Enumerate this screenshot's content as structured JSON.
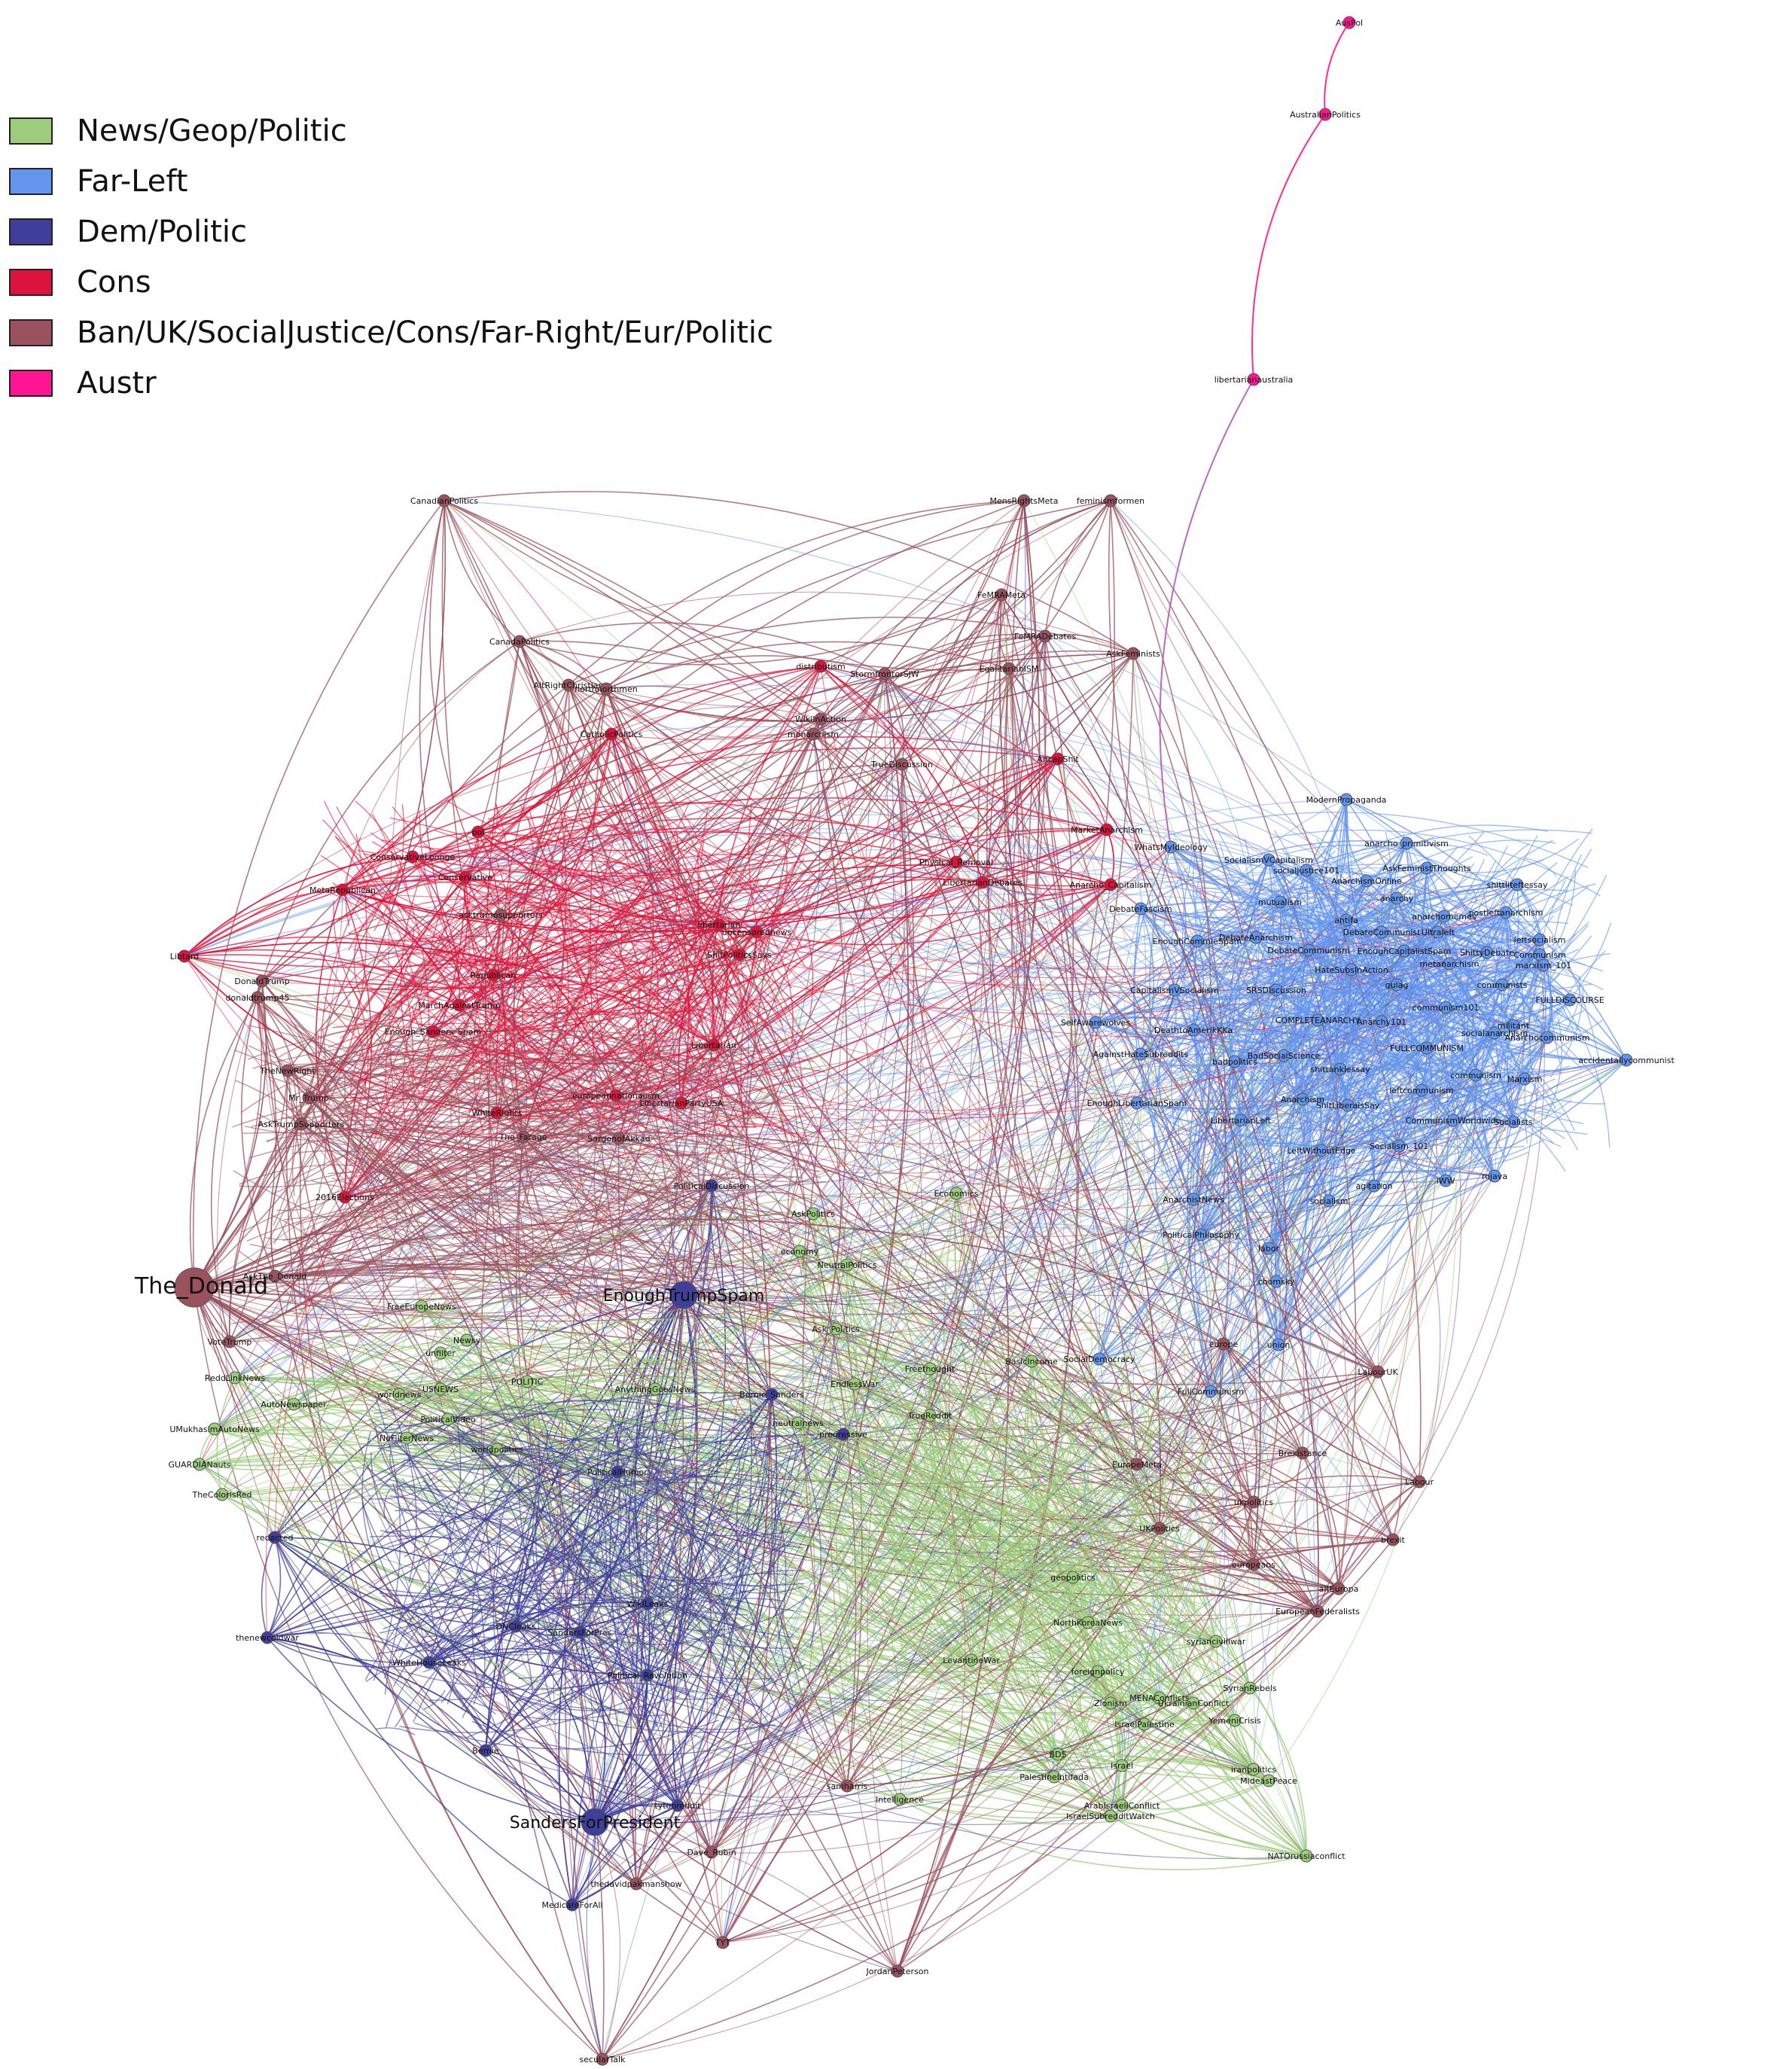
{
  "legend": [
    {
      "label": "News/Geop/Politic",
      "color": "#9ccc7c"
    },
    {
      "label": "Far-Left",
      "color": "#6495ed"
    },
    {
      "label": "Dem/Politic",
      "color": "#3f3f9a"
    },
    {
      "label": "Cons",
      "color": "#dc143c"
    },
    {
      "label": "Ban/UK/SocialJustice/Cons/Far-Right/Eur/Politic",
      "color": "#9a525f"
    },
    {
      "label": "Austr",
      "color": "#ff1493"
    }
  ],
  "nodes": [
    {
      "id": "The_Donald",
      "group": 4,
      "big": true
    },
    {
      "id": "SandersForPresident",
      "group": 2,
      "big": true
    },
    {
      "id": "EnoughTrumpSpam",
      "group": 2,
      "big": true
    },
    {
      "id": "PoliticalDiscussion",
      "group": 2
    },
    {
      "id": "AusPol",
      "group": 5
    },
    {
      "id": "AustralianPolitics",
      "group": 5
    },
    {
      "id": "libertarianaustralia",
      "group": 5
    },
    {
      "id": "CanadianPolitics",
      "group": 4
    },
    {
      "id": "CanadaPolitics",
      "group": 4
    },
    {
      "id": "MensRightsMeta",
      "group": 4
    },
    {
      "id": "feminismformen",
      "group": 4
    },
    {
      "id": "FeMRAMeta",
      "group": 4
    },
    {
      "id": "FeMRADebates",
      "group": 4
    },
    {
      "id": "AskFeminists",
      "group": 4
    },
    {
      "id": "EgalitarianISM",
      "group": 4
    },
    {
      "id": "AltRightChristian",
      "group": 4
    },
    {
      "id": "northnorthmen",
      "group": 4
    },
    {
      "id": "CatholicPolitics",
      "group": 3
    },
    {
      "id": "distributism",
      "group": 3
    },
    {
      "id": "StormfrontorSJW",
      "group": 4
    },
    {
      "id": "WikiInAction",
      "group": 4
    },
    {
      "id": "monarchism",
      "group": 4
    },
    {
      "id": "TrueDiscussion",
      "group": 4
    },
    {
      "id": "AncapShit",
      "group": 3
    },
    {
      "id": "LibertarianDebates",
      "group": 3
    },
    {
      "id": "Physical_Removal",
      "group": 3
    },
    {
      "id": "Anarcho_Capitalism",
      "group": 3
    },
    {
      "id": "MarketAnarchism",
      "group": 3
    },
    {
      "id": "ModernPropaganda",
      "group": 1
    },
    {
      "id": "anarcho_primitivism",
      "group": 1
    },
    {
      "id": "AskFeministThoughts",
      "group": 1
    },
    {
      "id": "shittliteftessay",
      "group": 1
    },
    {
      "id": "SocialismVCapitalism",
      "group": 1
    },
    {
      "id": "socialjustice101",
      "group": 1
    },
    {
      "id": "AnarchismOnline",
      "group": 1
    },
    {
      "id": "WhatsMyIdeology",
      "group": 1
    },
    {
      "id": "mutualism",
      "group": 1
    },
    {
      "id": "anarchy",
      "group": 1
    },
    {
      "id": "DebateFascism",
      "group": 1
    },
    {
      "id": "antifa",
      "group": 1
    },
    {
      "id": "DebateCommunist",
      "group": 1
    },
    {
      "id": "anarchomemes",
      "group": 1
    },
    {
      "id": "postleftanarchism",
      "group": 1
    },
    {
      "id": "Ultraleft",
      "group": 1
    },
    {
      "id": "leftsocialism",
      "group": 1
    },
    {
      "id": "DebateAnarchism",
      "group": 1
    },
    {
      "id": "DebateCommunism",
      "group": 1
    },
    {
      "id": "EnoughCapitalistSpam",
      "group": 1
    },
    {
      "id": "ShittyDebate",
      "group": 1
    },
    {
      "id": "Communism",
      "group": 1
    },
    {
      "id": "metanarchism",
      "group": 1
    },
    {
      "id": "marxism_101",
      "group": 1
    },
    {
      "id": "HateSubsInAction",
      "group": 1
    },
    {
      "id": "gulag",
      "group": 1
    },
    {
      "id": "communists",
      "group": 1
    },
    {
      "id": "CapitalismVSocialism",
      "group": 1
    },
    {
      "id": "SRSDiscussion",
      "group": 1
    },
    {
      "id": "FULLDISCOURSE",
      "group": 1
    },
    {
      "id": "communism101",
      "group": 1
    },
    {
      "id": "COMPLETEANARCHY",
      "group": 1
    },
    {
      "id": "Anarchy101",
      "group": 1
    },
    {
      "id": "militant",
      "group": 1
    },
    {
      "id": "socialanarchism",
      "group": 1
    },
    {
      "id": "Anarchocommunism",
      "group": 1
    },
    {
      "id": "FULLCOMMUNISM",
      "group": 1
    },
    {
      "id": "accidentallycommunist",
      "group": 1
    },
    {
      "id": "BadSocialScience",
      "group": 1
    },
    {
      "id": "badpolitics",
      "group": 1
    },
    {
      "id": "shittankiessay",
      "group": 1
    },
    {
      "id": "communism",
      "group": 1
    },
    {
      "id": "Marxism",
      "group": 1
    },
    {
      "id": "leftcommunism",
      "group": 1
    },
    {
      "id": "Anarchism",
      "group": 1
    },
    {
      "id": "ShitLiberalsSay",
      "group": 1
    },
    {
      "id": "CommunismWorldwide",
      "group": 1
    },
    {
      "id": "Socialists",
      "group": 1
    },
    {
      "id": "LibertarianLeft",
      "group": 1
    },
    {
      "id": "LeftWithoutEdge",
      "group": 1
    },
    {
      "id": "Socialism_101",
      "group": 1
    },
    {
      "id": "IWW",
      "group": 1
    },
    {
      "id": "rojava",
      "group": 1
    },
    {
      "id": "socialism",
      "group": 1
    },
    {
      "id": "agitation",
      "group": 1
    },
    {
      "id": "DeathtoAmerikKKa",
      "group": 1
    },
    {
      "id": "SelfAwarewolves",
      "group": 1
    },
    {
      "id": "EnoughCommieSpam",
      "group": 1
    },
    {
      "id": "EnoughLibertarianSpam",
      "group": 1
    },
    {
      "id": "AgainstHateSubreddits",
      "group": 1
    },
    {
      "id": "AnarchistNews",
      "group": 1
    },
    {
      "id": "PoliticalPhilosophy",
      "group": 1
    },
    {
      "id": "labor",
      "group": 1
    },
    {
      "id": "chomsky",
      "group": 1
    },
    {
      "id": "union",
      "group": 1
    },
    {
      "id": "MetaRepublican",
      "group": 3
    },
    {
      "id": "ConservativeLounge",
      "group": 3
    },
    {
      "id": "Conservative",
      "group": 3
    },
    {
      "id": "asktrumpsupporters",
      "group": 4
    },
    {
      "id": "MarchAgainstTrump",
      "group": 3
    },
    {
      "id": "Republican",
      "group": 3
    },
    {
      "id": "Enough_Sanders_Spam",
      "group": 3
    },
    {
      "id": "uncensorednews",
      "group": 3
    },
    {
      "id": "libertarian",
      "group": 3
    },
    {
      "id": "NeutralPolitics",
      "group": 0
    },
    {
      "id": "ShitPoliticsSays",
      "group": 3
    },
    {
      "id": "Libertarian",
      "group": 3
    },
    {
      "id": "europeannationalism",
      "group": 3
    },
    {
      "id": "LibertarianPartyUSA",
      "group": 3
    },
    {
      "id": "WhiteRights",
      "group": 3
    },
    {
      "id": "The_Farage",
      "group": 4
    },
    {
      "id": "SargonofAkkad",
      "group": 4
    },
    {
      "id": "pol",
      "group": 3
    },
    {
      "id": "DonaldTrump",
      "group": 4
    },
    {
      "id": "donaldtrump45",
      "group": 4
    },
    {
      "id": "TheNewRight",
      "group": 4
    },
    {
      "id": "AskTrumpSupporters",
      "group": 4
    },
    {
      "id": "2016Elections",
      "group": 3
    },
    {
      "id": "AskThe_Donald",
      "group": 4
    },
    {
      "id": "VoteTrump",
      "group": 4
    },
    {
      "id": "Mr_Trump",
      "group": 4
    },
    {
      "id": "Libtard",
      "group": 3
    },
    {
      "id": "ReddLinkNews",
      "group": 0
    },
    {
      "id": "AutoNewspaper",
      "group": 0
    },
    {
      "id": "UMukhasimAutoNews",
      "group": 0
    },
    {
      "id": "GUARDIANauts",
      "group": 0
    },
    {
      "id": "TheColorIsRed",
      "group": 0
    },
    {
      "id": "FreeEuropeNews",
      "group": 0
    },
    {
      "id": "Newsy",
      "group": 0
    },
    {
      "id": "unfilter",
      "group": 0
    },
    {
      "id": "USNEWS",
      "group": 0
    },
    {
      "id": "worldnews",
      "group": 0
    },
    {
      "id": "POLITIC",
      "group": 0
    },
    {
      "id": "PoliticalVideo",
      "group": 0
    },
    {
      "id": "NoFilterNews",
      "group": 0
    },
    {
      "id": "worldpolitics",
      "group": 0
    },
    {
      "id": "AnythingGoesNews",
      "group": 0
    },
    {
      "id": "Economics",
      "group": 0
    },
    {
      "id": "economy",
      "group": 0
    },
    {
      "id": "AskPolitics",
      "group": 0
    },
    {
      "id": "PoliticalHumor",
      "group": 2
    },
    {
      "id": "Ask_Politics",
      "group": 0
    },
    {
      "id": "TrueReddit",
      "group": 0
    },
    {
      "id": "BasicIncome",
      "group": 0
    },
    {
      "id": "SocialDemocracy",
      "group": 1
    },
    {
      "id": "Freethought",
      "group": 0
    },
    {
      "id": "EndlessWar",
      "group": 0
    },
    {
      "id": "neutralnews",
      "group": 0
    },
    {
      "id": "progressive",
      "group": 2
    },
    {
      "id": "Bernie_Sanders",
      "group": 2
    },
    {
      "id": "FullCommunism",
      "group": 1
    },
    {
      "id": "Political_Revolution",
      "group": 2
    },
    {
      "id": "WikiLeaks",
      "group": 2
    },
    {
      "id": "DNCleaks",
      "group": 2
    },
    {
      "id": "SandersForPres",
      "group": 2
    },
    {
      "id": "thenewcoldwar",
      "group": 2
    },
    {
      "id": "WhiteHouseLeaks",
      "group": 2
    },
    {
      "id": "redacted",
      "group": 2
    },
    {
      "id": "Bernie",
      "group": 2
    },
    {
      "id": "MedicareForAll",
      "group": 2
    },
    {
      "id": "tytonreddit",
      "group": 2
    },
    {
      "id": "geopolitics",
      "group": 0
    },
    {
      "id": "NorthKoreaNews",
      "group": 0
    },
    {
      "id": "foreignpolicy",
      "group": 0
    },
    {
      "id": "Zionism",
      "group": 0
    },
    {
      "id": "MENAConflicts",
      "group": 0
    },
    {
      "id": "IsraelPalestine",
      "group": 0
    },
    {
      "id": "Israel",
      "group": 0
    },
    {
      "id": "BDS",
      "group": 0
    },
    {
      "id": "PalestineIntifada",
      "group": 0
    },
    {
      "id": "ArabIsraeliConflict",
      "group": 0
    },
    {
      "id": "IsraelSubredditWatch",
      "group": 0
    },
    {
      "id": "syrianciviliwar",
      "group": 0
    },
    {
      "id": "SyrianRebels",
      "group": 0
    },
    {
      "id": "UkrainianConflict",
      "group": 0
    },
    {
      "id": "YemeniCrisis",
      "group": 0
    },
    {
      "id": "iranpolitics",
      "group": 0
    },
    {
      "id": "MideastPeace",
      "group": 0
    },
    {
      "id": "NATOrussiaconflict",
      "group": 0
    },
    {
      "id": "LevantineWar",
      "group": 0
    },
    {
      "id": "Intelligence",
      "group": 0
    },
    {
      "id": "LabourUK",
      "group": 4
    },
    {
      "id": "Labour",
      "group": 4
    },
    {
      "id": "brexit",
      "group": 4
    },
    {
      "id": "Brexistance",
      "group": 4
    },
    {
      "id": "ukpolitics",
      "group": 4
    },
    {
      "id": "EuropeMeta",
      "group": 4
    },
    {
      "id": "europeans",
      "group": 4
    },
    {
      "id": "altEuropa",
      "group": 4
    },
    {
      "id": "EuropeanFederalists",
      "group": 4
    },
    {
      "id": "UKPolitics",
      "group": 4
    },
    {
      "id": "europe",
      "group": 4
    },
    {
      "id": "samharris",
      "group": 4
    },
    {
      "id": "JordanPeterson",
      "group": 4
    },
    {
      "id": "Dave_Rubin",
      "group": 4
    },
    {
      "id": "thedavidpakmanshow",
      "group": 4
    },
    {
      "id": "secularTalk",
      "group": 4
    },
    {
      "id": "TYT",
      "group": 4
    }
  ]
}
